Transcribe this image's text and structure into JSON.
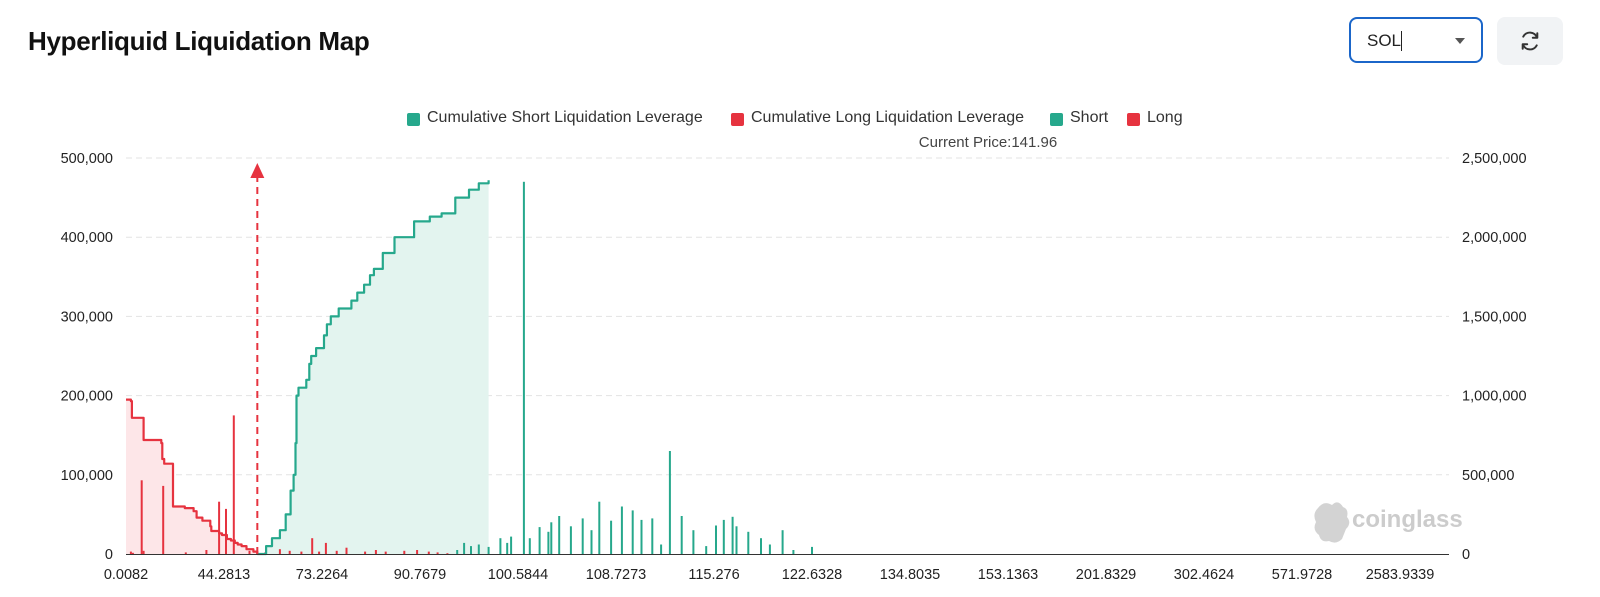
{
  "header": {
    "title": "Hyperliquid Liquidation Map",
    "symbol_select": {
      "value": "SOL"
    },
    "refresh_icon": "refresh-icon"
  },
  "legend": [
    {
      "label": "Cumulative Short Liquidation Leverage",
      "color": "#26a88c"
    },
    {
      "label": "Cumulative Long Liquidation Leverage",
      "color": "#e6333f"
    },
    {
      "label": "Short",
      "color": "#26a88c"
    },
    {
      "label": "Long",
      "color": "#e6333f"
    }
  ],
  "current_price_label": "Current Price:141.96",
  "watermark": "coinglass",
  "colors": {
    "short": "#26a88c",
    "short_fill": "#e3f4ef",
    "long": "#e6333f",
    "long_fill": "#fde6e8",
    "grid": "#e3e3e3",
    "axis": "#333333"
  },
  "chart_data": {
    "type": "bar",
    "x_tick_labels": [
      "0.0082",
      "44.2813",
      "73.2264",
      "90.7679",
      "100.5844",
      "108.7273",
      "115.276",
      "122.6328",
      "134.8035",
      "153.1363",
      "201.8329",
      "302.4624",
      "571.9728",
      "2583.9339"
    ],
    "y_left": {
      "ticks": [
        "0",
        "100,000",
        "200,000",
        "300,000",
        "400,000",
        "500,000"
      ],
      "range": [
        0,
        500000
      ]
    },
    "y_right": {
      "ticks": [
        "0",
        "500,000",
        "1,000,000",
        "1,500,000",
        "2,000,000",
        "2,500,000"
      ],
      "range": [
        0,
        2500000
      ]
    },
    "grid": true,
    "legend_position": "top-center",
    "current_price": 141.96,
    "series": [
      {
        "name": "Cumulative Long Liquidation Leverage",
        "type": "step-area",
        "axis": "right",
        "points": [
          [
            0.0,
            975000
          ],
          [
            0.05,
            965000
          ],
          [
            0.06,
            860000
          ],
          [
            0.18,
            840000
          ],
          [
            0.18,
            720000
          ],
          [
            0.36,
            700000
          ],
          [
            0.37,
            665000
          ],
          [
            0.37,
            600000
          ],
          [
            0.39,
            570000
          ],
          [
            0.48,
            563000
          ],
          [
            0.48,
            480000
          ],
          [
            0.48,
            300000
          ],
          [
            0.6,
            290000
          ],
          [
            0.69,
            270000
          ],
          [
            0.72,
            230000
          ],
          [
            0.78,
            210000
          ],
          [
            0.86,
            175000
          ],
          [
            0.87,
            145000
          ],
          [
            0.95,
            130000
          ],
          [
            0.98,
            120000
          ],
          [
            1.03,
            95000
          ],
          [
            1.07,
            85000
          ],
          [
            1.11,
            70000
          ],
          [
            1.14,
            60000
          ],
          [
            1.18,
            50000
          ],
          [
            1.23,
            30000
          ],
          [
            1.3,
            15000
          ],
          [
            1.34,
            0
          ]
        ]
      },
      {
        "name": "Cumulative Short Liquidation Leverage",
        "type": "step-area",
        "axis": "right",
        "points": [
          [
            1.34,
            0
          ],
          [
            1.43,
            50000
          ],
          [
            1.49,
            100000
          ],
          [
            1.57,
            150000
          ],
          [
            1.63,
            250000
          ],
          [
            1.68,
            400000
          ],
          [
            1.71,
            500000
          ],
          [
            1.73,
            700000
          ],
          [
            1.74,
            1000000
          ],
          [
            1.76,
            1050000
          ],
          [
            1.84,
            1100000
          ],
          [
            1.87,
            1200000
          ],
          [
            1.89,
            1250000
          ],
          [
            1.94,
            1300000
          ],
          [
            2.02,
            1380000
          ],
          [
            2.05,
            1450000
          ],
          [
            2.09,
            1500000
          ],
          [
            2.17,
            1550000
          ],
          [
            2.3,
            1600000
          ],
          [
            2.36,
            1650000
          ],
          [
            2.43,
            1700000
          ],
          [
            2.49,
            1760000
          ],
          [
            2.53,
            1800000
          ],
          [
            2.62,
            1900000
          ],
          [
            2.74,
            2000000
          ],
          [
            2.94,
            2100000
          ],
          [
            3.1,
            2130000
          ],
          [
            3.22,
            2150000
          ],
          [
            3.36,
            2250000
          ],
          [
            3.5,
            2300000
          ],
          [
            3.6,
            2340000
          ],
          [
            3.7,
            2360000
          ]
        ]
      },
      {
        "name": "Long",
        "type": "bar",
        "axis": "left",
        "points": [
          [
            0.05,
            3000
          ],
          [
            0.07,
            1500
          ],
          [
            0.16,
            93000
          ],
          [
            0.18,
            4000
          ],
          [
            0.38,
            86000
          ],
          [
            0.61,
            2000
          ],
          [
            0.82,
            5000
          ],
          [
            0.95,
            66000
          ],
          [
            1.02,
            57000
          ],
          [
            1.1,
            175000
          ],
          [
            1.26,
            4000
          ],
          [
            1.42,
            2000
          ],
          [
            1.57,
            6000
          ],
          [
            1.67,
            4000
          ],
          [
            1.79,
            3000
          ],
          [
            1.9,
            20000
          ],
          [
            1.97,
            3000
          ],
          [
            2.04,
            14000
          ],
          [
            2.15,
            4000
          ],
          [
            2.25,
            8000
          ],
          [
            2.44,
            3000
          ],
          [
            2.55,
            5000
          ],
          [
            2.65,
            3000
          ],
          [
            2.84,
            4000
          ],
          [
            2.97,
            5000
          ],
          [
            3.09,
            3000
          ],
          [
            3.18,
            2000
          ],
          [
            3.28,
            1000
          ]
        ]
      },
      {
        "name": "Short",
        "type": "bar",
        "axis": "left",
        "points": [
          [
            3.38,
            5000
          ],
          [
            3.45,
            14000
          ],
          [
            3.52,
            10000
          ],
          [
            3.6,
            12000
          ],
          [
            3.7,
            9000
          ],
          [
            3.82,
            20000
          ],
          [
            3.89,
            14000
          ],
          [
            3.93,
            22000
          ],
          [
            4.06,
            470000
          ],
          [
            4.12,
            20000
          ],
          [
            4.22,
            34000
          ],
          [
            4.31,
            28000
          ],
          [
            4.34,
            40000
          ],
          [
            4.42,
            48000
          ],
          [
            4.54,
            35000
          ],
          [
            4.66,
            45000
          ],
          [
            4.75,
            30000
          ],
          [
            4.83,
            66000
          ],
          [
            4.95,
            42000
          ],
          [
            5.06,
            60000
          ],
          [
            5.17,
            55000
          ],
          [
            5.26,
            43000
          ],
          [
            5.37,
            45000
          ],
          [
            5.46,
            12000
          ],
          [
            5.55,
            130000
          ],
          [
            5.67,
            48000
          ],
          [
            5.79,
            30000
          ],
          [
            5.92,
            10000
          ],
          [
            6.02,
            36000
          ],
          [
            6.1,
            43000
          ],
          [
            6.19,
            47000
          ],
          [
            6.23,
            35000
          ],
          [
            6.35,
            28000
          ],
          [
            6.48,
            20000
          ],
          [
            6.57,
            12000
          ],
          [
            6.7,
            30000
          ],
          [
            6.81,
            5000
          ],
          [
            7.0,
            9000
          ]
        ]
      }
    ]
  }
}
